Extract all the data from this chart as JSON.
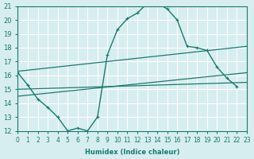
{
  "background_color": "#d7eef0",
  "grid_color": "#ffffff",
  "line_color": "#1a7a6e",
  "xlabel": "Humidex (Indice chaleur)",
  "xlim": [
    0,
    23
  ],
  "ylim": [
    12,
    21
  ],
  "yticks": [
    12,
    13,
    14,
    15,
    16,
    17,
    18,
    19,
    20,
    21
  ],
  "xticks": [
    0,
    1,
    2,
    3,
    4,
    5,
    6,
    7,
    8,
    9,
    10,
    11,
    12,
    13,
    14,
    15,
    16,
    17,
    18,
    19,
    20,
    21,
    22,
    23
  ],
  "curve1_x": [
    0,
    1,
    2,
    3,
    4,
    5,
    6,
    7,
    8,
    9,
    10,
    11,
    12,
    13,
    14,
    15,
    16,
    17,
    18,
    19,
    20,
    21,
    22
  ],
  "curve1_y": [
    16.2,
    15.3,
    14.3,
    13.7,
    13.0,
    12.0,
    12.2,
    12.0,
    13.0,
    17.5,
    19.3,
    20.1,
    20.5,
    21.2,
    21.2,
    20.8,
    20.0,
    18.1,
    18.0,
    17.8,
    16.6,
    15.8,
    15.2
  ],
  "line1_x": [
    0,
    23
  ],
  "line1_y": [
    15.0,
    15.5
  ],
  "line2_x": [
    0,
    23
  ],
  "line2_y": [
    14.5,
    16.2
  ],
  "line3_x": [
    0,
    23
  ],
  "line3_y": [
    16.3,
    18.1
  ]
}
